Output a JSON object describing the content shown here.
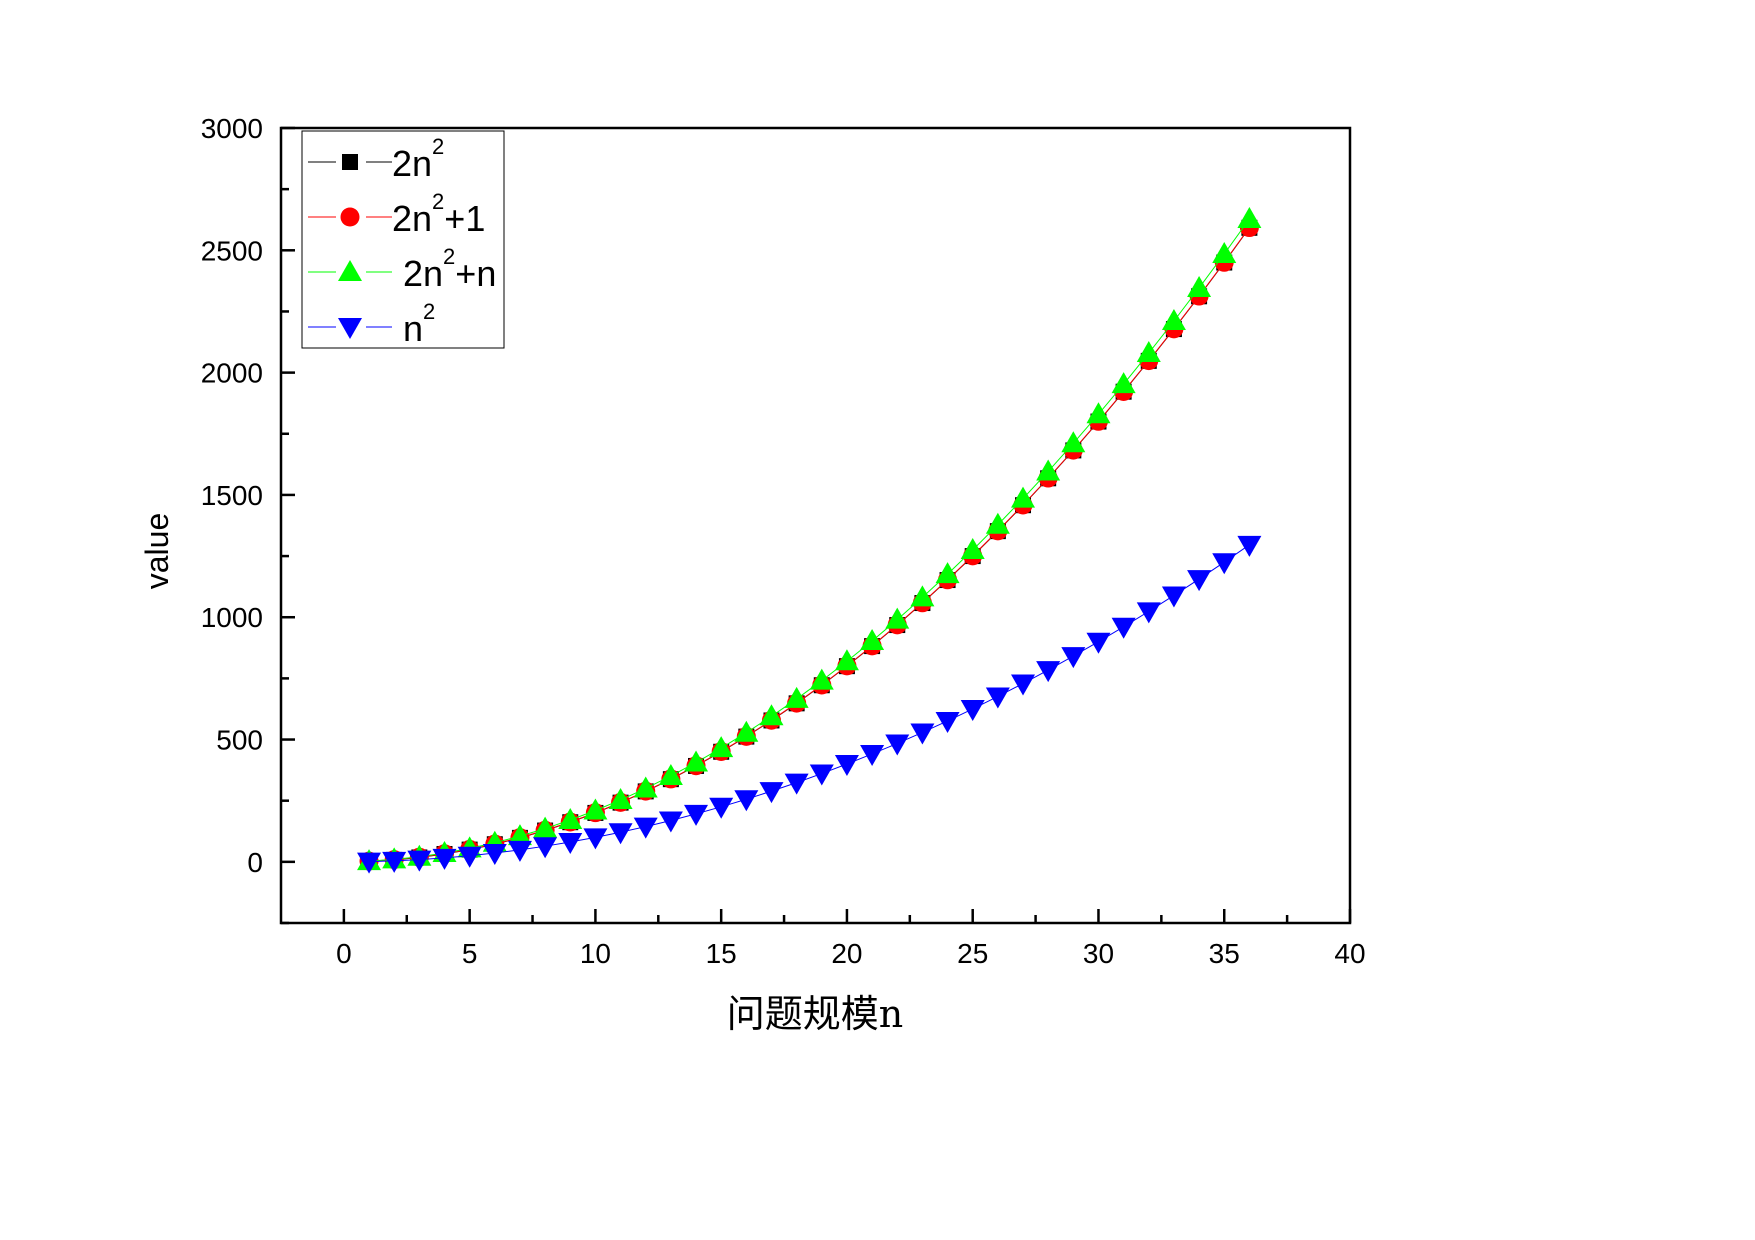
{
  "chart_data": {
    "type": "scatter",
    "title": "",
    "xlabel": "问题规模n",
    "ylabel": "value",
    "xlim": [
      -2.5,
      40
    ],
    "ylim": [
      -250,
      3000
    ],
    "xticks": [
      0,
      5,
      10,
      15,
      20,
      25,
      30,
      35,
      40
    ],
    "yticks": [
      0,
      500,
      1000,
      1500,
      2000,
      2500,
      3000
    ],
    "grid": false,
    "legend_position": "top-left",
    "x": [
      1,
      2,
      3,
      4,
      5,
      6,
      7,
      8,
      9,
      10,
      11,
      12,
      13,
      14,
      15,
      16,
      17,
      18,
      19,
      20,
      21,
      22,
      23,
      24,
      25,
      26,
      27,
      28,
      29,
      30,
      31,
      32,
      33,
      34,
      35,
      36
    ],
    "series": [
      {
        "name": "2n^2",
        "label_base": "2n",
        "label_sup": "2",
        "label_tail": "",
        "formula": "2n^2",
        "color": "#000000",
        "marker": "square"
      },
      {
        "name": "2n^2+1",
        "label_base": "2n",
        "label_sup": "2",
        "label_tail": "+1",
        "formula": "2n^2+1",
        "color": "#ff0000",
        "marker": "circle"
      },
      {
        "name": "2n^2+n",
        "label_base": "2n",
        "label_sup": "2",
        "label_tail": "+n",
        "formula": "2n^2+n",
        "color": "#00ff00",
        "marker": "triangle-up"
      },
      {
        "name": "n^2",
        "label_base": "n",
        "label_sup": "2",
        "label_tail": "",
        "formula": "n^2",
        "color": "#0000ff",
        "marker": "triangle-down"
      }
    ]
  }
}
